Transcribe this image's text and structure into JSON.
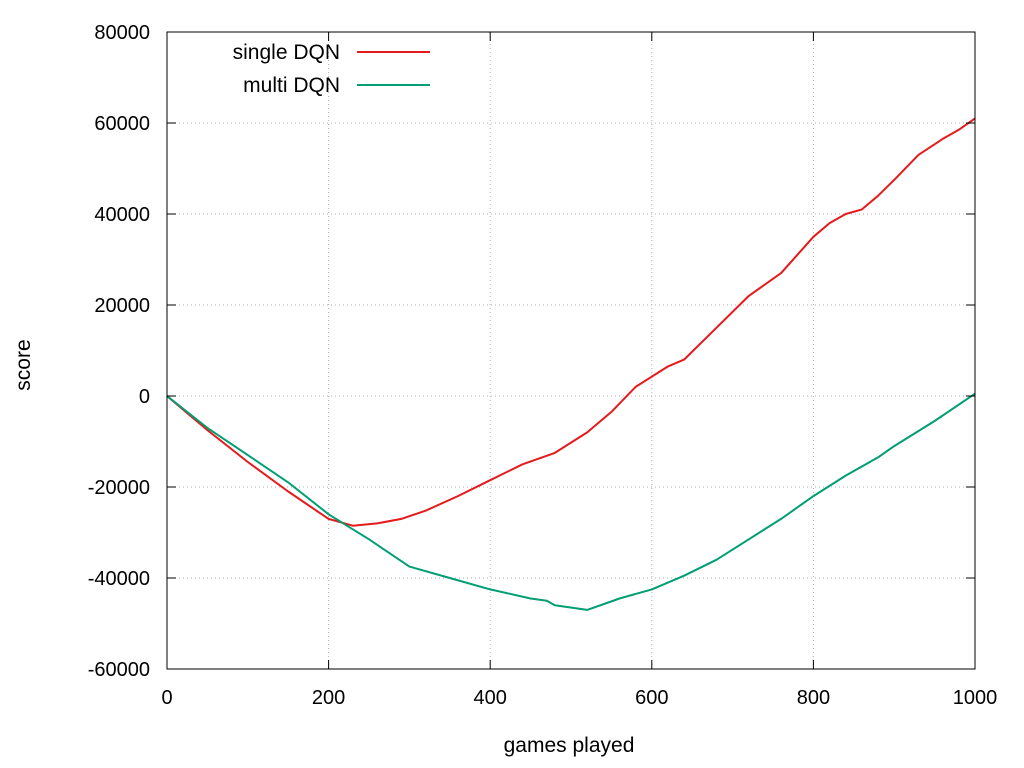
{
  "chart_data": {
    "type": "line",
    "title": "",
    "xlabel": "games played",
    "ylabel": "score",
    "xlim": [
      0,
      1000
    ],
    "ylim": [
      -60000,
      80000
    ],
    "xticks": [
      0,
      200,
      400,
      600,
      800,
      1000
    ],
    "yticks": [
      -60000,
      -40000,
      -20000,
      0,
      20000,
      40000,
      60000,
      80000
    ],
    "xtick_labels": [
      "0",
      "200",
      "400",
      "600",
      "800",
      "1000"
    ],
    "ytick_labels": [
      "-60000",
      "-40000",
      "-20000",
      "0",
      "20000",
      "40000",
      "60000",
      "80000"
    ],
    "grid": true,
    "legend_position": "top-left",
    "series": [
      {
        "name": "single DQN",
        "color": "#e41a1c",
        "points": [
          [
            0,
            0
          ],
          [
            50,
            -7500
          ],
          [
            100,
            -14500
          ],
          [
            150,
            -21000
          ],
          [
            200,
            -27000
          ],
          [
            230,
            -28500
          ],
          [
            260,
            -28000
          ],
          [
            290,
            -27000
          ],
          [
            320,
            -25200
          ],
          [
            360,
            -22000
          ],
          [
            400,
            -18500
          ],
          [
            440,
            -15000
          ],
          [
            480,
            -12500
          ],
          [
            520,
            -8000
          ],
          [
            550,
            -3500
          ],
          [
            580,
            2000
          ],
          [
            620,
            6500
          ],
          [
            640,
            8000
          ],
          [
            680,
            15000
          ],
          [
            720,
            22000
          ],
          [
            760,
            27000
          ],
          [
            800,
            35000
          ],
          [
            820,
            38000
          ],
          [
            840,
            40000
          ],
          [
            860,
            41000
          ],
          [
            880,
            44000
          ],
          [
            900,
            47500
          ],
          [
            930,
            53000
          ],
          [
            960,
            56500
          ],
          [
            980,
            58500
          ],
          [
            1000,
            61000
          ]
        ]
      },
      {
        "name": "multi DQN",
        "color": "#009e73",
        "points": [
          [
            0,
            0
          ],
          [
            50,
            -7000
          ],
          [
            100,
            -13000
          ],
          [
            150,
            -19000
          ],
          [
            200,
            -26000
          ],
          [
            250,
            -31500
          ],
          [
            300,
            -37500
          ],
          [
            350,
            -40000
          ],
          [
            400,
            -42500
          ],
          [
            450,
            -44500
          ],
          [
            470,
            -45000
          ],
          [
            480,
            -46000
          ],
          [
            520,
            -47000
          ],
          [
            560,
            -44500
          ],
          [
            600,
            -42500
          ],
          [
            640,
            -39500
          ],
          [
            680,
            -36000
          ],
          [
            720,
            -31500
          ],
          [
            760,
            -27000
          ],
          [
            800,
            -22000
          ],
          [
            840,
            -17500
          ],
          [
            880,
            -13500
          ],
          [
            900,
            -11000
          ],
          [
            950,
            -5500
          ],
          [
            1000,
            500
          ]
        ]
      }
    ]
  }
}
